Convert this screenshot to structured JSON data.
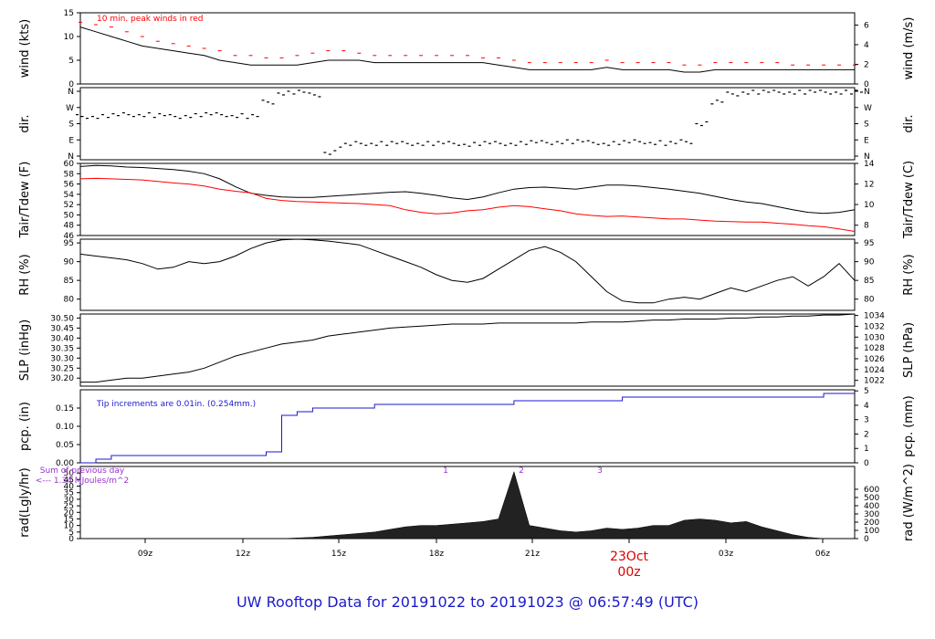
{
  "footer_title": "UW Rooftop Data for 20191022  to  20191023 @ 06:57:49  (UTC)",
  "colors": {
    "black": "#000000",
    "red": "#ff0000",
    "blue": "#1a1acc",
    "purple": "#9933cc",
    "date": "#dd0000"
  },
  "chart_data": [
    {
      "type": "line",
      "panel": "wind",
      "ylabel_left": "wind (kts)",
      "ylabel_right": "wind (m/s)",
      "ylim": [
        0,
        15
      ],
      "yticks_left": [
        "0",
        "5",
        "10",
        "15"
      ],
      "yticks_right": [
        "0",
        "2",
        "4",
        "6"
      ],
      "annotation": "10 min. peak winds in red",
      "series": [
        {
          "values": [
            12,
            11,
            10,
            9,
            8,
            7.5,
            7,
            6.5,
            6,
            5,
            4.5,
            4,
            4,
            4,
            4,
            4.5,
            5,
            5,
            5,
            4.5,
            4.5,
            4.5,
            4.5,
            4.5,
            4.5,
            4.5,
            4.5,
            4,
            3.5,
            3,
            3,
            3,
            3,
            3,
            3.5,
            3,
            3,
            3,
            3,
            2.5,
            2.5,
            3,
            3,
            3,
            3,
            3,
            3,
            3,
            3,
            3,
            3
          ]
        },
        {
          "values": [
            13,
            12.5,
            12,
            11,
            10,
            9,
            8.5,
            8,
            7.5,
            7,
            6,
            6,
            5.5,
            5.5,
            6,
            6.5,
            7,
            7,
            6.5,
            6,
            6,
            6,
            6,
            6,
            6,
            6,
            5.5,
            5.5,
            5,
            4.5,
            4.5,
            4.5,
            4.5,
            4.5,
            5,
            4.5,
            4.5,
            4.5,
            4.5,
            4,
            4,
            4.5,
            4.5,
            4.5,
            4.5,
            4.5,
            4,
            4,
            4,
            4,
            4
          ]
        }
      ]
    },
    {
      "type": "scatter",
      "panel": "direction",
      "ylabel_left": "dir.",
      "ylabel_right": "dir.",
      "yticks_left": [
        "N",
        "W",
        "S",
        "E",
        "N"
      ],
      "yticks_right": [
        "N",
        "W",
        "S",
        "E",
        "N"
      ],
      "ylim": [
        0,
        360
      ],
      "series": [
        {
          "values": [
            220,
            220,
            225,
            230,
            230,
            225,
            220,
            225,
            230,
            230,
            225,
            220,
            300,
            350,
            355,
            340,
            20,
            60,
            70,
            70,
            70,
            70,
            70,
            70,
            70,
            65,
            70,
            70,
            70,
            75,
            75,
            80,
            80,
            75,
            70,
            75,
            80,
            75,
            70,
            80,
            180,
            300,
            345,
            355,
            355,
            355,
            355,
            355,
            355,
            355,
            355
          ]
        }
      ]
    },
    {
      "type": "line",
      "panel": "temperature",
      "ylabel_left": "Tair/Tdew (F)",
      "ylabel_right": "Tair/Tdew (C)",
      "ylim": [
        46,
        60
      ],
      "yticks_left": [
        "46",
        "48",
        "50",
        "52",
        "54",
        "56",
        "58",
        "60"
      ],
      "yticks_right": [
        "8",
        "10",
        "12",
        "14"
      ],
      "series": [
        {
          "values": [
            59.4,
            59.6,
            59.5,
            59.3,
            59.2,
            59,
            58.8,
            58.5,
            58,
            57,
            55.5,
            54.2,
            53.8,
            53.5,
            53.4,
            53.4,
            53.6,
            53.8,
            54,
            54.2,
            54.4,
            54.5,
            54.2,
            53.8,
            53.3,
            53,
            53.5,
            54.3,
            55,
            55.3,
            55.4,
            55.2,
            55,
            55.4,
            55.8,
            55.8,
            55.6,
            55.3,
            55,
            54.6,
            54.2,
            53.6,
            53,
            52.5,
            52.2,
            51.6,
            51,
            50.5,
            50.3,
            50.5,
            51
          ]
        },
        {
          "values": [
            57,
            57.1,
            57,
            56.9,
            56.8,
            56.5,
            56.2,
            56,
            55.6,
            55,
            54.6,
            54.3,
            53.2,
            52.8,
            52.6,
            52.5,
            52.4,
            52.3,
            52.2,
            52,
            51.8,
            51,
            50.5,
            50.2,
            50.4,
            50.8,
            51,
            51.5,
            51.8,
            51.6,
            51.2,
            50.8,
            50.2,
            49.9,
            49.7,
            49.8,
            49.6,
            49.4,
            49.2,
            49.2,
            49,
            48.8,
            48.7,
            48.6,
            48.6,
            48.4,
            48.2,
            47.9,
            47.7,
            47.3,
            46.8
          ]
        }
      ]
    },
    {
      "type": "line",
      "panel": "humidity",
      "ylabel_left": "RH (%)",
      "ylabel_right": "RH (%)",
      "ylim": [
        77,
        96
      ],
      "yticks_left": [
        "80",
        "85",
        "90",
        "95"
      ],
      "yticks_right": [
        "80",
        "85",
        "90",
        "95"
      ],
      "series": [
        {
          "values": [
            92,
            91.5,
            91,
            90.5,
            89.5,
            88,
            88.5,
            90,
            89.5,
            90,
            91.5,
            93.5,
            95,
            95.8,
            96,
            95.8,
            95.5,
            95,
            94.5,
            93,
            91.5,
            90,
            88.5,
            86.5,
            85,
            84.5,
            85.5,
            88,
            90.5,
            93,
            94,
            92.5,
            90,
            86,
            82,
            79.5,
            79,
            79,
            80,
            80.5,
            80,
            81.5,
            83,
            82,
            83.5,
            85,
            86,
            83.5,
            86,
            89.5,
            85
          ]
        }
      ]
    },
    {
      "type": "line",
      "panel": "pressure",
      "ylabel_left": "SLP (inHg)",
      "ylabel_right": "SLP (hPa)",
      "ylim": [
        30.16,
        30.52
      ],
      "yticks_left": [
        "30.20",
        "30.25",
        "30.30",
        "30.35",
        "30.40",
        "30.45",
        "30.50"
      ],
      "yticks_right": [
        "1022",
        "1024",
        "1026",
        "1028",
        "1030",
        "1032",
        "1034"
      ],
      "series": [
        {
          "values": [
            30.18,
            30.18,
            30.19,
            30.2,
            30.2,
            30.21,
            30.22,
            30.23,
            30.25,
            30.28,
            30.31,
            30.33,
            30.35,
            30.37,
            30.38,
            30.39,
            30.41,
            30.42,
            30.43,
            30.44,
            30.45,
            30.455,
            30.46,
            30.465,
            30.47,
            30.47,
            30.47,
            30.475,
            30.475,
            30.475,
            30.475,
            30.475,
            30.475,
            30.48,
            30.48,
            30.48,
            30.485,
            30.49,
            30.49,
            30.495,
            30.495,
            30.495,
            30.5,
            30.5,
            30.505,
            30.505,
            30.51,
            30.51,
            30.515,
            30.515,
            30.52
          ]
        }
      ]
    },
    {
      "type": "line",
      "panel": "precipitation",
      "ylabel_left": "pcp. (in)",
      "ylabel_right": "pcp. (mm)",
      "ylim": [
        0,
        0.2
      ],
      "yticks_left": [
        "0.00",
        "0.05",
        "0.10",
        "0.15"
      ],
      "yticks_right": [
        "0",
        "1",
        "2",
        "3",
        "4",
        "5"
      ],
      "annotation": "Tip increments are 0.01in. (0.254mm.)",
      "series": [
        {
          "values": [
            0,
            0.01,
            0.02,
            0.02,
            0.02,
            0.02,
            0.02,
            0.02,
            0.02,
            0.02,
            0.02,
            0.02,
            0.03,
            0.13,
            0.14,
            0.15,
            0.15,
            0.15,
            0.15,
            0.16,
            0.16,
            0.16,
            0.16,
            0.16,
            0.16,
            0.16,
            0.16,
            0.16,
            0.17,
            0.17,
            0.17,
            0.17,
            0.17,
            0.17,
            0.17,
            0.18,
            0.18,
            0.18,
            0.18,
            0.18,
            0.18,
            0.18,
            0.18,
            0.18,
            0.18,
            0.18,
            0.18,
            0.18,
            0.19,
            0.19,
            0.19
          ]
        }
      ]
    },
    {
      "type": "area",
      "panel": "radiation",
      "ylabel_left": "rad(Lgly/hr)",
      "ylabel_right": "rad (W/m^2)",
      "ylim": [
        0,
        55
      ],
      "yticks_left": [
        "0",
        "5",
        "10",
        "15",
        "20",
        "25",
        "30",
        "35",
        "40",
        "45",
        "50"
      ],
      "yticks_right": [
        "0",
        "100",
        "200",
        "300",
        "400",
        "500",
        "600"
      ],
      "annotation_lines": [
        "Sum of previous day",
        "<--- 1.34 MJoules/m^2"
      ],
      "peak_labels": [
        "1",
        "2",
        "3"
      ],
      "series": [
        {
          "values": [
            0,
            0,
            0,
            0,
            0,
            0,
            0,
            0,
            0,
            0,
            0,
            0,
            0,
            0,
            0.5,
            1,
            2,
            3,
            4,
            5,
            7,
            9,
            10,
            10,
            11,
            12,
            13,
            15,
            51,
            10,
            8,
            6,
            5,
            6,
            8,
            7,
            8,
            10,
            10,
            14,
            15,
            14,
            12,
            13,
            9,
            6,
            3,
            1,
            0,
            0,
            0
          ]
        }
      ]
    }
  ],
  "x_axis": {
    "tick_labels": [
      "09z",
      "12z",
      "15z",
      "18z",
      "21z",
      "00z",
      "03z",
      "06z"
    ],
    "date_label": "23Oct"
  }
}
